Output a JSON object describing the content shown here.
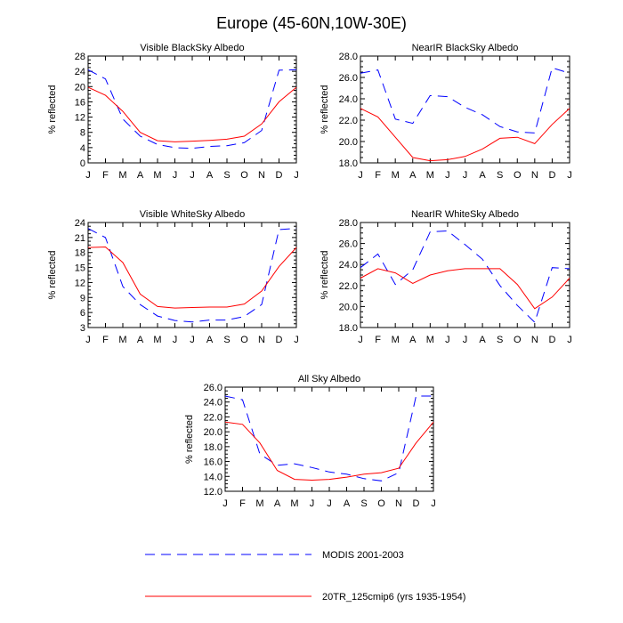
{
  "figure": {
    "title": "Europe (45-60N,10W-30E)"
  },
  "legend": {
    "items": [
      {
        "series": "modis",
        "label": "MODIS 2001-2003",
        "color": "#0000ff",
        "dash": "dashed"
      },
      {
        "series": "model",
        "label": "20TR_125cmip6 (yrs 1935-1954)",
        "color": "#ff0000",
        "dash": "solid"
      }
    ]
  },
  "chart_data": [
    {
      "type": "line",
      "title": "Visible BlackSky Albedo",
      "xlabel": "",
      "ylabel": "% reflected",
      "categories": [
        "J",
        "F",
        "M",
        "A",
        "M",
        "J",
        "J",
        "A",
        "S",
        "O",
        "N",
        "D",
        "J"
      ],
      "ylim": [
        0,
        28
      ],
      "yticks": [
        "0",
        "4",
        "8",
        "12",
        "16",
        "20",
        "24",
        "28"
      ],
      "series": [
        {
          "name": "MODIS 2001-2003",
          "values": [
            24.4,
            22.0,
            11.5,
            7.0,
            4.8,
            4.0,
            3.8,
            4.3,
            4.5,
            5.3,
            8.5,
            24.3,
            24.4
          ]
        },
        {
          "name": "20TR_125cmip6 (yrs 1935-1954)",
          "values": [
            19.8,
            17.7,
            13.5,
            8.0,
            5.8,
            5.5,
            5.7,
            5.9,
            6.2,
            7.0,
            10.2,
            16.0,
            19.8
          ]
        }
      ]
    },
    {
      "type": "line",
      "title": "NearIR BlackSky Albedo",
      "xlabel": "",
      "ylabel": "% reflected",
      "categories": [
        "J",
        "F",
        "M",
        "A",
        "M",
        "J",
        "J",
        "A",
        "S",
        "O",
        "N",
        "D",
        "J"
      ],
      "ylim": [
        18.0,
        28.0
      ],
      "yticks": [
        "18.0",
        "20.0",
        "22.0",
        "24.0",
        "26.0",
        "28.0"
      ],
      "series": [
        {
          "name": "MODIS 2001-2003",
          "values": [
            26.4,
            26.7,
            22.1,
            21.7,
            24.3,
            24.2,
            23.2,
            22.5,
            21.4,
            20.9,
            20.8,
            26.9,
            26.4
          ]
        },
        {
          "name": "20TR_125cmip6 (yrs 1935-1954)",
          "values": [
            23.1,
            22.3,
            20.4,
            18.5,
            18.2,
            18.3,
            18.6,
            19.3,
            20.3,
            20.4,
            19.8,
            21.6,
            23.1
          ]
        }
      ]
    },
    {
      "type": "line",
      "title": "Visible WhiteSky Albedo",
      "xlabel": "",
      "ylabel": "% reflected",
      "categories": [
        "J",
        "F",
        "M",
        "A",
        "M",
        "J",
        "J",
        "A",
        "S",
        "O",
        "N",
        "D",
        "J"
      ],
      "ylim": [
        3,
        24
      ],
      "yticks": [
        "3",
        "6",
        "9",
        "12",
        "15",
        "18",
        "21",
        "24"
      ],
      "series": [
        {
          "name": "MODIS 2001-2003",
          "values": [
            22.8,
            21.0,
            11.2,
            7.6,
            5.3,
            4.4,
            4.1,
            4.5,
            4.5,
            5.2,
            7.6,
            22.6,
            22.8
          ]
        },
        {
          "name": "20TR_125cmip6 (yrs 1935-1954)",
          "values": [
            19.0,
            19.1,
            16.0,
            9.7,
            7.2,
            6.9,
            7.0,
            7.1,
            7.1,
            7.7,
            10.3,
            15.2,
            19.0
          ]
        }
      ]
    },
    {
      "type": "line",
      "title": "NearIR WhiteSky Albedo",
      "xlabel": "",
      "ylabel": "% reflected",
      "categories": [
        "J",
        "F",
        "M",
        "A",
        "M",
        "J",
        "J",
        "A",
        "S",
        "O",
        "N",
        "D",
        "J"
      ],
      "ylim": [
        18.0,
        28.0
      ],
      "yticks": [
        "18.0",
        "20.0",
        "22.0",
        "24.0",
        "26.0",
        "28.0"
      ],
      "series": [
        {
          "name": "MODIS 2001-2003",
          "values": [
            23.7,
            25.0,
            22.1,
            23.5,
            27.1,
            27.2,
            25.9,
            24.5,
            22.0,
            20.1,
            18.5,
            23.7,
            23.6
          ]
        },
        {
          "name": "20TR_125cmip6 (yrs 1935-1954)",
          "values": [
            22.7,
            23.6,
            23.2,
            22.2,
            23.0,
            23.4,
            23.6,
            23.6,
            23.6,
            22.1,
            19.8,
            20.9,
            22.7
          ]
        }
      ]
    },
    {
      "type": "line",
      "title": "All Sky Albedo",
      "xlabel": "",
      "ylabel": "% reflected",
      "categories": [
        "J",
        "F",
        "M",
        "A",
        "M",
        "J",
        "J",
        "A",
        "S",
        "O",
        "N",
        "D",
        "J"
      ],
      "ylim": [
        12.0,
        26.0
      ],
      "yticks": [
        "12.0",
        "14.0",
        "16.0",
        "18.0",
        "20.0",
        "22.0",
        "24.0",
        "26.0"
      ],
      "series": [
        {
          "name": "MODIS 2001-2003",
          "values": [
            24.8,
            24.3,
            17.0,
            15.5,
            15.7,
            15.2,
            14.6,
            14.3,
            13.7,
            13.4,
            14.5,
            24.8,
            24.8
          ]
        },
        {
          "name": "20TR_125cmip6 (yrs 1935-1954)",
          "values": [
            21.3,
            21.0,
            18.5,
            14.8,
            13.6,
            13.5,
            13.6,
            13.9,
            14.3,
            14.5,
            15.1,
            18.5,
            21.3
          ]
        }
      ]
    }
  ]
}
